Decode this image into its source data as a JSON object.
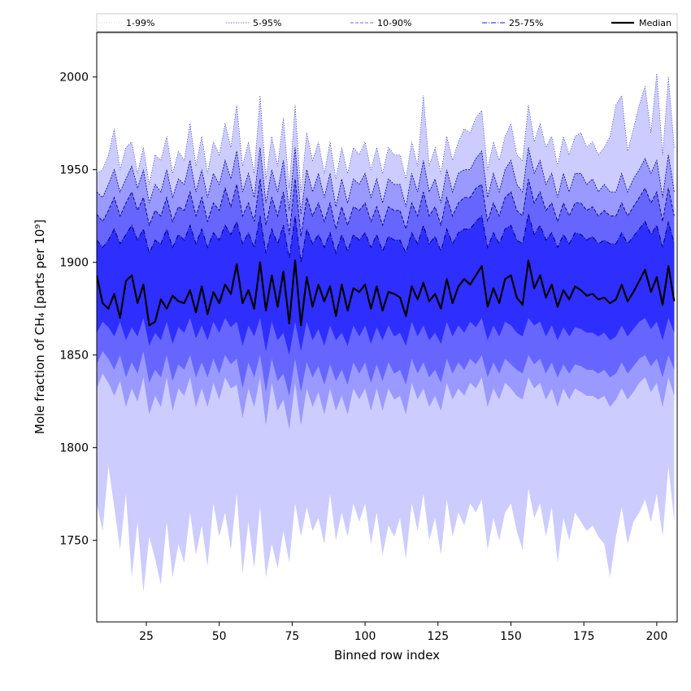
{
  "chart_data": {
    "type": "area",
    "title": "",
    "xlabel": "Binned row index",
    "ylabel": "Mole fraction of CH₄ [parts per 10⁹]",
    "xlim": [
      8,
      207
    ],
    "ylim": [
      1706,
      2024
    ],
    "x_ticks": [
      25,
      50,
      75,
      100,
      125,
      150,
      175,
      200
    ],
    "y_ticks": [
      1750,
      1800,
      1850,
      1900,
      1950,
      2000
    ],
    "grid": false,
    "legend_position": "top",
    "colors": {
      "band_1_99": "#ccccff",
      "band_5_95": "#9999ff",
      "band_10_90": "#6666ff",
      "band_25_75": "#2e2eff",
      "median": "#000000",
      "outline": "#000080"
    },
    "legend": [
      {
        "label": "1-99%",
        "style": "dotted-thin"
      },
      {
        "label": "5-95%",
        "style": "dotted"
      },
      {
        "label": "10-90%",
        "style": "dashed"
      },
      {
        "label": "25-75%",
        "style": "dashdot"
      },
      {
        "label": "Median",
        "style": "solid"
      }
    ],
    "x": [
      8,
      10,
      12,
      14,
      16,
      18,
      20,
      22,
      24,
      26,
      28,
      30,
      32,
      34,
      36,
      38,
      40,
      42,
      44,
      46,
      48,
      50,
      52,
      54,
      56,
      58,
      60,
      62,
      64,
      66,
      68,
      70,
      72,
      74,
      76,
      78,
      80,
      82,
      84,
      86,
      88,
      90,
      92,
      94,
      96,
      98,
      100,
      102,
      104,
      106,
      108,
      110,
      112,
      114,
      116,
      118,
      120,
      122,
      124,
      126,
      128,
      130,
      132,
      134,
      136,
      138,
      140,
      142,
      144,
      146,
      148,
      150,
      152,
      154,
      156,
      158,
      160,
      162,
      164,
      166,
      168,
      170,
      172,
      174,
      176,
      178,
      180,
      182,
      184,
      186,
      188,
      190,
      192,
      194,
      196,
      198,
      200,
      202,
      204,
      206
    ],
    "series": [
      {
        "name": "Median",
        "values": [
          1893,
          1878,
          1875,
          1883,
          1870,
          1890,
          1893,
          1878,
          1888,
          1866,
          1868,
          1880,
          1875,
          1882,
          1879,
          1878,
          1885,
          1873,
          1887,
          1872,
          1884,
          1878,
          1888,
          1883,
          1899,
          1878,
          1885,
          1875,
          1900,
          1874,
          1893,
          1876,
          1895,
          1867,
          1901,
          1866,
          1892,
          1876,
          1888,
          1879,
          1887,
          1871,
          1888,
          1874,
          1886,
          1884,
          1888,
          1875,
          1887,
          1874,
          1884,
          1883,
          1881,
          1871,
          1887,
          1880,
          1889,
          1879,
          1883,
          1875,
          1891,
          1878,
          1887,
          1891,
          1888,
          1893,
          1898,
          1876,
          1886,
          1878,
          1891,
          1893,
          1881,
          1877,
          1901,
          1886,
          1893,
          1881,
          1888,
          1876,
          1885,
          1880,
          1887,
          1885,
          1882,
          1883,
          1880,
          1881,
          1878,
          1880,
          1888,
          1879,
          1884,
          1890,
          1896,
          1884,
          1892,
          1877,
          1898,
          1879
        ]
      },
      {
        "name": "25-75%",
        "lower": [
          1862,
          1868,
          1865,
          1860,
          1868,
          1858,
          1865,
          1860,
          1870,
          1855,
          1862,
          1858,
          1868,
          1856,
          1865,
          1862,
          1870,
          1859,
          1866,
          1858,
          1868,
          1862,
          1870,
          1865,
          1868,
          1855,
          1866,
          1860,
          1870,
          1852,
          1868,
          1858,
          1862,
          1850,
          1868,
          1852,
          1868,
          1858,
          1864,
          1855,
          1866,
          1858,
          1862,
          1855,
          1866,
          1860,
          1866,
          1856,
          1865,
          1858,
          1866,
          1860,
          1862,
          1855,
          1868,
          1860,
          1866,
          1858,
          1862,
          1856,
          1868,
          1860,
          1866,
          1862,
          1868,
          1865,
          1870,
          1858,
          1866,
          1860,
          1868,
          1866,
          1862,
          1860,
          1870,
          1866,
          1868,
          1860,
          1866,
          1858,
          1865,
          1860,
          1865,
          1864,
          1862,
          1862,
          1860,
          1862,
          1858,
          1860,
          1866,
          1860,
          1864,
          1868,
          1870,
          1864,
          1868,
          1858,
          1870,
          1862
        ],
        "upper": [
          1912,
          1908,
          1912,
          1918,
          1910,
          1915,
          1920,
          1912,
          1918,
          1905,
          1912,
          1910,
          1918,
          1908,
          1915,
          1912,
          1920,
          1910,
          1918,
          1908,
          1916,
          1912,
          1920,
          1915,
          1922,
          1910,
          1916,
          1908,
          1925,
          1905,
          1918,
          1910,
          1920,
          1902,
          1925,
          1900,
          1918,
          1910,
          1915,
          1908,
          1916,
          1905,
          1915,
          1906,
          1915,
          1912,
          1916,
          1908,
          1915,
          1906,
          1914,
          1912,
          1912,
          1905,
          1916,
          1910,
          1920,
          1910,
          1914,
          1906,
          1918,
          1910,
          1916,
          1918,
          1918,
          1922,
          1925,
          1908,
          1916,
          1910,
          1918,
          1920,
          1912,
          1910,
          1926,
          1915,
          1920,
          1912,
          1916,
          1908,
          1915,
          1910,
          1916,
          1915,
          1912,
          1914,
          1910,
          1912,
          1910,
          1910,
          1916,
          1910,
          1914,
          1918,
          1922,
          1915,
          1920,
          1908,
          1922,
          1910
        ]
      },
      {
        "name": "10-90%",
        "lower": [
          1845,
          1852,
          1848,
          1842,
          1850,
          1838,
          1846,
          1840,
          1852,
          1835,
          1842,
          1838,
          1850,
          1836,
          1845,
          1842,
          1850,
          1838,
          1846,
          1838,
          1848,
          1840,
          1850,
          1845,
          1848,
          1832,
          1846,
          1838,
          1850,
          1830,
          1848,
          1836,
          1840,
          1828,
          1848,
          1830,
          1846,
          1838,
          1844,
          1834,
          1845,
          1836,
          1842,
          1834,
          1846,
          1840,
          1846,
          1835,
          1845,
          1836,
          1846,
          1840,
          1842,
          1834,
          1848,
          1840,
          1846,
          1838,
          1842,
          1835,
          1848,
          1840,
          1846,
          1842,
          1848,
          1845,
          1850,
          1838,
          1846,
          1840,
          1848,
          1845,
          1842,
          1840,
          1850,
          1845,
          1848,
          1840,
          1846,
          1838,
          1845,
          1840,
          1845,
          1844,
          1842,
          1842,
          1840,
          1842,
          1838,
          1840,
          1846,
          1840,
          1844,
          1848,
          1850,
          1844,
          1848,
          1838,
          1850,
          1842
        ],
        "upper": [
          1926,
          1922,
          1928,
          1935,
          1925,
          1932,
          1938,
          1928,
          1935,
          1920,
          1928,
          1925,
          1935,
          1922,
          1930,
          1928,
          1938,
          1925,
          1935,
          1922,
          1932,
          1928,
          1940,
          1930,
          1942,
          1925,
          1932,
          1922,
          1945,
          1920,
          1935,
          1925,
          1938,
          1915,
          1945,
          1914,
          1935,
          1925,
          1932,
          1922,
          1932,
          1918,
          1930,
          1920,
          1930,
          1928,
          1932,
          1922,
          1930,
          1920,
          1930,
          1928,
          1928,
          1918,
          1932,
          1925,
          1938,
          1925,
          1930,
          1920,
          1935,
          1925,
          1932,
          1935,
          1935,
          1940,
          1942,
          1922,
          1932,
          1925,
          1935,
          1938,
          1928,
          1925,
          1945,
          1932,
          1938,
          1928,
          1932,
          1922,
          1932,
          1925,
          1932,
          1932,
          1928,
          1930,
          1925,
          1928,
          1925,
          1925,
          1932,
          1925,
          1930,
          1935,
          1940,
          1932,
          1938,
          1922,
          1940,
          1925
        ]
      },
      {
        "name": "5-95%",
        "lower": [
          1832,
          1840,
          1835,
          1828,
          1836,
          1822,
          1832,
          1825,
          1838,
          1818,
          1828,
          1822,
          1838,
          1820,
          1832,
          1828,
          1838,
          1822,
          1832,
          1822,
          1835,
          1826,
          1838,
          1832,
          1834,
          1816,
          1832,
          1822,
          1838,
          1812,
          1835,
          1820,
          1826,
          1810,
          1835,
          1812,
          1832,
          1822,
          1830,
          1818,
          1832,
          1820,
          1828,
          1818,
          1832,
          1826,
          1832,
          1820,
          1832,
          1820,
          1832,
          1826,
          1828,
          1818,
          1835,
          1826,
          1832,
          1822,
          1828,
          1820,
          1835,
          1826,
          1832,
          1828,
          1835,
          1832,
          1838,
          1822,
          1832,
          1826,
          1835,
          1832,
          1828,
          1826,
          1838,
          1832,
          1835,
          1826,
          1832,
          1822,
          1832,
          1826,
          1832,
          1830,
          1828,
          1828,
          1826,
          1828,
          1822,
          1826,
          1832,
          1826,
          1830,
          1835,
          1838,
          1830,
          1835,
          1822,
          1838,
          1828
        ],
        "upper": [
          1938,
          1935,
          1942,
          1950,
          1938,
          1945,
          1952,
          1940,
          1950,
          1932,
          1942,
          1938,
          1950,
          1935,
          1945,
          1942,
          1955,
          1938,
          1950,
          1935,
          1948,
          1942,
          1955,
          1945,
          1960,
          1938,
          1948,
          1935,
          1962,
          1932,
          1950,
          1938,
          1955,
          1928,
          1962,
          1926,
          1950,
          1938,
          1948,
          1935,
          1948,
          1930,
          1945,
          1932,
          1945,
          1942,
          1948,
          1935,
          1945,
          1932,
          1945,
          1942,
          1942,
          1930,
          1948,
          1938,
          1955,
          1938,
          1945,
          1932,
          1950,
          1938,
          1948,
          1950,
          1950,
          1956,
          1960,
          1935,
          1948,
          1938,
          1950,
          1955,
          1942,
          1938,
          1962,
          1948,
          1955,
          1942,
          1948,
          1935,
          1948,
          1938,
          1948,
          1948,
          1942,
          1945,
          1938,
          1942,
          1938,
          1938,
          1948,
          1938,
          1945,
          1950,
          1956,
          1948,
          1955,
          1935,
          1958,
          1938
        ]
      },
      {
        "name": "1-99%",
        "lower": [
          1770,
          1755,
          1790,
          1768,
          1745,
          1775,
          1730,
          1760,
          1722,
          1752,
          1740,
          1726,
          1760,
          1730,
          1748,
          1738,
          1765,
          1742,
          1758,
          1736,
          1770,
          1752,
          1765,
          1745,
          1775,
          1732,
          1760,
          1735,
          1768,
          1730,
          1748,
          1735,
          1755,
          1738,
          1770,
          1752,
          1768,
          1755,
          1762,
          1748,
          1775,
          1750,
          1765,
          1752,
          1770,
          1760,
          1770,
          1748,
          1765,
          1742,
          1758,
          1752,
          1762,
          1740,
          1770,
          1755,
          1775,
          1750,
          1762,
          1742,
          1772,
          1752,
          1765,
          1758,
          1770,
          1765,
          1772,
          1745,
          1762,
          1750,
          1765,
          1770,
          1755,
          1745,
          1778,
          1762,
          1770,
          1752,
          1768,
          1738,
          1762,
          1750,
          1765,
          1760,
          1755,
          1758,
          1752,
          1748,
          1730,
          1752,
          1768,
          1748,
          1760,
          1765,
          1772,
          1760,
          1775,
          1752,
          1790,
          1760
        ],
        "upper": [
          1948,
          1950,
          1958,
          1972,
          1950,
          1962,
          1965,
          1948,
          1962,
          1942,
          1958,
          1955,
          1968,
          1948,
          1960,
          1955,
          1975,
          1952,
          1968,
          1948,
          1965,
          1958,
          1975,
          1962,
          1985,
          1952,
          1965,
          1948,
          1990,
          1945,
          1968,
          1952,
          1978,
          1940,
          1985,
          1938,
          1970,
          1955,
          1965,
          1948,
          1965,
          1945,
          1962,
          1948,
          1962,
          1958,
          1965,
          1950,
          1962,
          1948,
          1962,
          1958,
          1958,
          1945,
          1965,
          1952,
          1990,
          1952,
          1962,
          1948,
          1968,
          1955,
          1965,
          1972,
          1970,
          1978,
          1982,
          1950,
          1965,
          1955,
          1968,
          1975,
          1958,
          1955,
          1985,
          1965,
          1975,
          1962,
          1968,
          1952,
          1968,
          1958,
          1968,
          1970,
          1962,
          1965,
          1958,
          1962,
          1968,
          1985,
          1990,
          1960,
          1972,
          1985,
          1995,
          1970,
          2002,
          1958,
          2000,
          1962
        ]
      }
    ]
  }
}
